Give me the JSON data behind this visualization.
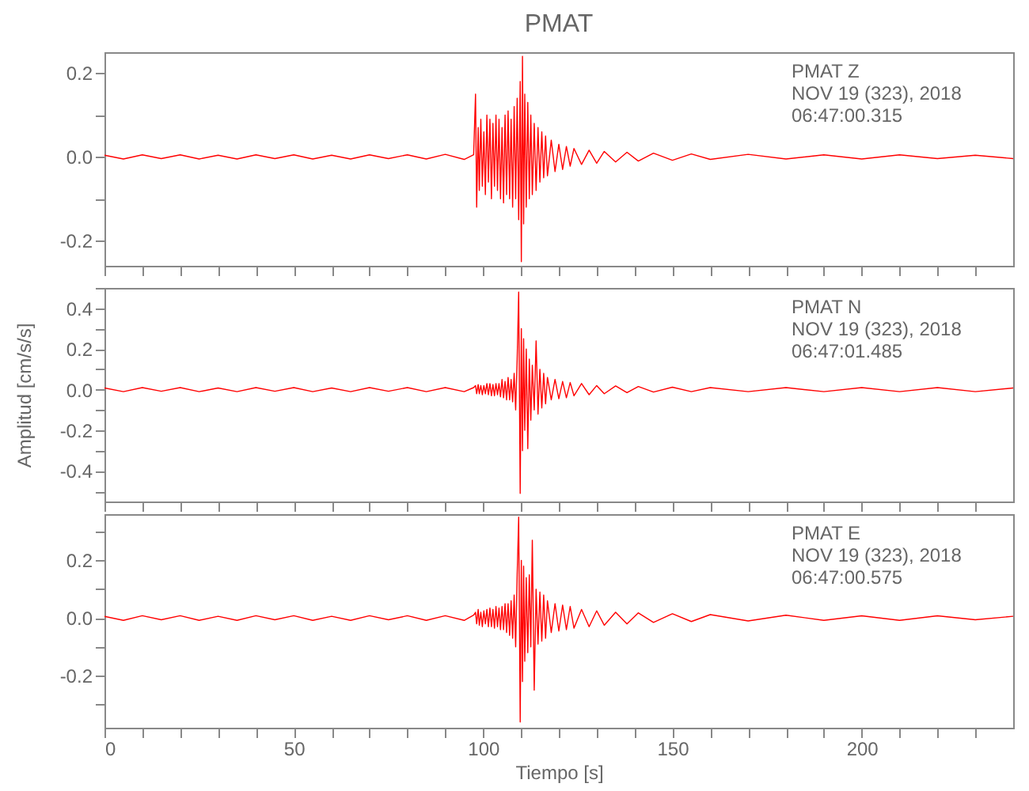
{
  "chart_data": [
    {
      "type": "line",
      "title": "PMAT",
      "xlim": [
        0,
        240
      ],
      "xticks": [
        0,
        {
          "value": 10,
          "label": null
        },
        {
          "value": 20,
          "label": null
        },
        {
          "value": 30,
          "label": null
        },
        {
          "value": 40,
          "label": null
        },
        50,
        {
          "value": 60,
          "label": null
        },
        {
          "value": 70,
          "label": null
        },
        {
          "value": 80,
          "label": null
        },
        {
          "value": 90,
          "label": null
        },
        100,
        {
          "value": 110,
          "label": null
        },
        {
          "value": 120,
          "label": null
        },
        {
          "value": 130,
          "label": null
        },
        {
          "value": 140,
          "label": null
        },
        150,
        {
          "value": 160,
          "label": null
        },
        {
          "value": 170,
          "label": null
        },
        {
          "value": 180,
          "label": null
        },
        {
          "value": 190,
          "label": null
        },
        200,
        {
          "value": 210,
          "label": null
        },
        {
          "value": 220,
          "label": null
        },
        {
          "value": 230,
          "label": null
        }
      ],
      "ylim": [
        -0.26,
        0.25
      ],
      "yticks": [
        -0.2,
        {
          "value": -0.1,
          "label": null
        },
        {
          "value": 0,
          "label": "0.0"
        },
        {
          "value": 0.1,
          "label": null
        },
        0.2
      ],
      "tick_labels": "y",
      "annotations": [
        "PMAT   Z",
        "NOV 19 (323), 2018",
        "06:47:00.315"
      ],
      "series": [
        {
          "color": "#ff0000",
          "x": [
            0,
            5,
            10,
            15,
            20,
            25,
            30,
            35,
            40,
            45,
            50,
            55,
            60,
            65,
            70,
            75,
            80,
            85,
            90,
            95,
            97.5,
            98,
            98.3,
            98.7,
            99,
            99.4,
            99.8,
            100.2,
            100.6,
            101,
            101.4,
            101.8,
            102.2,
            102.6,
            103,
            103.4,
            103.8,
            104.2,
            104.6,
            105,
            105.4,
            105.8,
            106.2,
            106.6,
            107,
            107.4,
            107.8,
            108.2,
            108.6,
            109,
            109.4,
            109.8,
            110.1,
            110.4,
            110.7,
            111,
            111.4,
            111.8,
            112.2,
            112.6,
            113,
            113.5,
            114,
            114.5,
            115,
            115.5,
            116,
            116.5,
            117,
            118,
            119,
            120,
            121,
            122,
            123,
            124,
            126,
            128,
            130,
            132,
            135,
            138,
            141,
            145,
            150,
            155,
            160,
            170,
            180,
            190,
            200,
            210,
            220,
            230,
            240
          ],
          "values": [
            0.004,
            -0.005,
            0.005,
            -0.004,
            0.005,
            -0.005,
            0.004,
            -0.005,
            0.005,
            -0.004,
            0.005,
            -0.005,
            0.004,
            -0.005,
            0.005,
            -0.004,
            0.005,
            -0.005,
            0.006,
            -0.006,
            0.005,
            0.15,
            -0.12,
            0.07,
            -0.08,
            0.09,
            -0.07,
            0.06,
            -0.09,
            0.1,
            -0.06,
            0.09,
            -0.1,
            0.08,
            -0.07,
            0.1,
            -0.08,
            0.09,
            -0.1,
            0.07,
            -0.11,
            0.1,
            -0.09,
            0.11,
            -0.1,
            0.09,
            -0.12,
            0.12,
            -0.1,
            0.14,
            -0.15,
            0.18,
            -0.25,
            0.24,
            -0.16,
            0.15,
            -0.12,
            0.13,
            -0.1,
            0.1,
            -0.09,
            0.08,
            -0.08,
            0.07,
            -0.06,
            0.06,
            -0.05,
            0.05,
            -0.045,
            0.04,
            -0.035,
            0.03,
            -0.03,
            0.025,
            -0.022,
            0.02,
            -0.018,
            0.016,
            -0.015,
            0.013,
            -0.012,
            0.011,
            -0.01,
            0.009,
            -0.008,
            0.007,
            -0.006,
            0.006,
            -0.005,
            0.005,
            -0.005,
            0.005,
            -0.004,
            0.004,
            -0.004
          ]
        }
      ]
    },
    {
      "type": "line",
      "ylabel": "Amplitud [cm/s/s]",
      "xlim": [
        0,
        240
      ],
      "xticks": [
        0,
        {
          "value": 10,
          "label": null
        },
        {
          "value": 20,
          "label": null
        },
        {
          "value": 30,
          "label": null
        },
        {
          "value": 40,
          "label": null
        },
        50,
        {
          "value": 60,
          "label": null
        },
        {
          "value": 70,
          "label": null
        },
        {
          "value": 80,
          "label": null
        },
        {
          "value": 90,
          "label": null
        },
        100,
        {
          "value": 110,
          "label": null
        },
        {
          "value": 120,
          "label": null
        },
        {
          "value": 130,
          "label": null
        },
        {
          "value": 140,
          "label": null
        },
        150,
        {
          "value": 160,
          "label": null
        },
        {
          "value": 170,
          "label": null
        },
        {
          "value": 180,
          "label": null
        },
        {
          "value": 190,
          "label": null
        },
        200,
        {
          "value": 210,
          "label": null
        },
        {
          "value": 220,
          "label": null
        },
        {
          "value": 230,
          "label": null
        }
      ],
      "ylim": [
        -0.55,
        0.5
      ],
      "yticks": [
        {
          "value": -0.5,
          "label": null
        },
        -0.4,
        {
          "value": -0.3,
          "label": null
        },
        -0.2,
        {
          "value": -0.1,
          "label": null
        },
        {
          "value": 0,
          "label": "0.0"
        },
        {
          "value": 0.1,
          "label": null
        },
        0.2,
        {
          "value": 0.3,
          "label": null
        },
        0.4,
        {
          "value": 0.5,
          "label": null
        }
      ],
      "tick_labels": "y",
      "annotations": [
        "PMAT   N",
        "NOV 19 (323), 2018",
        "06:47:01.485"
      ],
      "series": [
        {
          "color": "#ff0000",
          "x": [
            0,
            5,
            10,
            15,
            20,
            25,
            30,
            35,
            40,
            45,
            50,
            55,
            60,
            65,
            70,
            75,
            80,
            85,
            90,
            95,
            97.5,
            98,
            98.3,
            98.7,
            99,
            99.4,
            99.8,
            100.2,
            100.6,
            101,
            101.4,
            101.8,
            102.2,
            102.6,
            103,
            103.4,
            103.8,
            104.2,
            104.6,
            105,
            105.4,
            105.8,
            106.2,
            106.6,
            107,
            107.4,
            107.8,
            108.2,
            108.6,
            109,
            109.4,
            109.8,
            110.1,
            110.4,
            110.7,
            111,
            111.4,
            111.8,
            112.2,
            112.6,
            113,
            113.5,
            114,
            114.5,
            115,
            115.5,
            116,
            116.5,
            117,
            118,
            119,
            120,
            121,
            122,
            123,
            124,
            126,
            128,
            130,
            132,
            135,
            138,
            141,
            145,
            150,
            155,
            160,
            170,
            180,
            190,
            200,
            210,
            220,
            230,
            240
          ],
          "values": [
            0.008,
            -0.01,
            0.01,
            -0.008,
            0.01,
            -0.01,
            0.008,
            -0.01,
            0.01,
            -0.008,
            0.01,
            -0.01,
            0.008,
            -0.01,
            0.01,
            -0.008,
            0.01,
            -0.01,
            0.01,
            -0.01,
            0.01,
            0.02,
            -0.02,
            0.025,
            -0.02,
            0.02,
            -0.025,
            0.02,
            -0.02,
            0.03,
            -0.025,
            0.03,
            -0.03,
            0.025,
            -0.03,
            0.03,
            -0.025,
            0.03,
            -0.035,
            0.05,
            -0.04,
            0.04,
            -0.05,
            0.06,
            -0.05,
            0.05,
            -0.06,
            0.08,
            -0.1,
            0.15,
            0.48,
            -0.51,
            0.3,
            -0.3,
            0.25,
            -0.2,
            0.2,
            -0.29,
            0.15,
            -0.15,
            0.12,
            -0.1,
            0.24,
            -0.12,
            0.1,
            -0.09,
            0.08,
            -0.07,
            0.06,
            -0.05,
            0.05,
            -0.045,
            0.04,
            -0.04,
            0.035,
            -0.03,
            0.03,
            -0.025,
            0.02,
            -0.02,
            0.018,
            -0.015,
            0.015,
            -0.012,
            0.012,
            -0.01,
            0.01,
            -0.01,
            0.01,
            -0.01,
            0.01,
            -0.01,
            0.01,
            -0.01,
            0.008
          ]
        }
      ]
    },
    {
      "type": "line",
      "xlabel": "Tiempo [s]",
      "xlim": [
        0,
        240
      ],
      "xticks": [
        0,
        {
          "value": 10,
          "label": null
        },
        {
          "value": 20,
          "label": null
        },
        {
          "value": 30,
          "label": null
        },
        {
          "value": 40,
          "label": null
        },
        50,
        {
          "value": 60,
          "label": null
        },
        {
          "value": 70,
          "label": null
        },
        {
          "value": 80,
          "label": null
        },
        {
          "value": 90,
          "label": null
        },
        100,
        {
          "value": 110,
          "label": null
        },
        {
          "value": 120,
          "label": null
        },
        {
          "value": 130,
          "label": null
        },
        {
          "value": 140,
          "label": null
        },
        150,
        {
          "value": 160,
          "label": null
        },
        {
          "value": 170,
          "label": null
        },
        {
          "value": 180,
          "label": null
        },
        {
          "value": 190,
          "label": null
        },
        200,
        {
          "value": 210,
          "label": null
        },
        {
          "value": 220,
          "label": null
        },
        {
          "value": 230,
          "label": null
        }
      ],
      "ylim": [
        -0.38,
        0.36
      ],
      "yticks": [
        {
          "value": -0.3,
          "label": null
        },
        -0.2,
        {
          "value": -0.1,
          "label": null
        },
        {
          "value": 0,
          "label": "0.0"
        },
        {
          "value": 0.1,
          "label": null
        },
        0.2,
        {
          "value": 0.3,
          "label": null
        }
      ],
      "annotations": [
        "PMAT   E",
        "NOV 19 (323), 2018",
        "06:47:00.575"
      ],
      "series": [
        {
          "color": "#ff0000",
          "x": [
            0,
            5,
            10,
            15,
            20,
            25,
            30,
            35,
            40,
            45,
            50,
            55,
            60,
            65,
            70,
            75,
            80,
            85,
            90,
            95,
            97.5,
            98,
            98.3,
            98.7,
            99,
            99.4,
            99.8,
            100.2,
            100.6,
            101,
            101.4,
            101.8,
            102.2,
            102.6,
            103,
            103.4,
            103.8,
            104.2,
            104.6,
            105,
            105.4,
            105.8,
            106.2,
            106.6,
            107,
            107.4,
            107.8,
            108.2,
            108.6,
            109,
            109.4,
            109.8,
            110.1,
            110.4,
            110.7,
            111,
            111.4,
            111.8,
            112.2,
            112.6,
            113,
            113.5,
            114,
            114.5,
            115,
            115.5,
            116,
            116.5,
            117,
            118,
            119,
            120,
            121,
            122,
            123,
            124,
            126,
            128,
            130,
            132,
            135,
            138,
            141,
            145,
            150,
            155,
            160,
            170,
            180,
            190,
            200,
            210,
            220,
            230,
            240
          ],
          "values": [
            0.006,
            -0.008,
            0.008,
            -0.006,
            0.008,
            -0.008,
            0.006,
            -0.008,
            0.008,
            -0.006,
            0.008,
            -0.008,
            0.006,
            -0.008,
            0.008,
            -0.006,
            0.008,
            -0.008,
            0.008,
            -0.008,
            0.01,
            0.02,
            -0.02,
            0.03,
            -0.025,
            0.02,
            -0.03,
            0.025,
            -0.02,
            0.03,
            -0.03,
            0.035,
            -0.03,
            0.03,
            -0.035,
            0.04,
            -0.03,
            0.035,
            -0.04,
            0.04,
            -0.04,
            0.05,
            -0.05,
            0.05,
            -0.06,
            0.06,
            -0.07,
            0.08,
            -0.1,
            0.15,
            0.35,
            -0.36,
            0.2,
            -0.22,
            0.18,
            -0.15,
            0.14,
            -0.12,
            0.15,
            -0.1,
            0.27,
            -0.25,
            0.1,
            -0.09,
            0.09,
            -0.08,
            0.08,
            -0.07,
            0.06,
            -0.05,
            0.05,
            -0.045,
            0.045,
            -0.04,
            0.04,
            -0.035,
            0.03,
            -0.03,
            0.025,
            -0.025,
            0.02,
            -0.02,
            0.018,
            -0.015,
            0.015,
            -0.012,
            0.012,
            -0.01,
            0.01,
            -0.008,
            0.008,
            -0.008,
            0.008,
            -0.006,
            0.006
          ]
        }
      ]
    }
  ]
}
